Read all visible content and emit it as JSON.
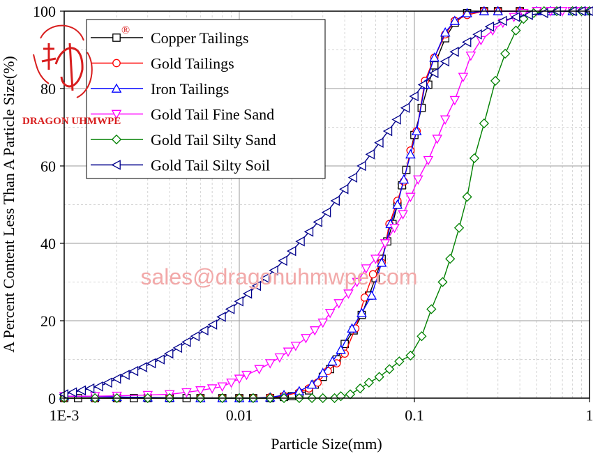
{
  "chart_data": {
    "type": "line",
    "xscale": "log",
    "xlim": [
      0.001,
      1
    ],
    "ylim": [
      0,
      100
    ],
    "xlabel": "Particle Size(mm)",
    "ylabel": "A Percent Content Less Than A Particle Size(%)",
    "xticks": [
      {
        "value": 0.001,
        "label": "1E-3"
      },
      {
        "value": 0.01,
        "label": "0.01"
      },
      {
        "value": 0.1,
        "label": "0.1"
      },
      {
        "value": 1,
        "label": "1"
      }
    ],
    "yticks": [
      {
        "value": 0,
        "label": "0"
      },
      {
        "value": 20,
        "label": "20"
      },
      {
        "value": 40,
        "label": "40"
      },
      {
        "value": 60,
        "label": "60"
      },
      {
        "value": 80,
        "label": "80"
      },
      {
        "value": 100,
        "label": "100"
      }
    ],
    "grid": true,
    "legend_position": "top-left",
    "series": [
      {
        "name": "Copper Tailings",
        "color": "#000000",
        "marker": "square",
        "x": [
          0.001,
          0.0012,
          0.0015,
          0.002,
          0.0025,
          0.003,
          0.004,
          0.005,
          0.006,
          0.008,
          0.01,
          0.012,
          0.015,
          0.018,
          0.02,
          0.022,
          0.025,
          0.027,
          0.03,
          0.033,
          0.036,
          0.04,
          0.045,
          0.05,
          0.055,
          0.06,
          0.065,
          0.07,
          0.075,
          0.08,
          0.085,
          0.09,
          0.1,
          0.11,
          0.12,
          0.13,
          0.15,
          0.17,
          0.2,
          0.25,
          0.3,
          0.4,
          0.5,
          0.6,
          0.8,
          1.0
        ],
        "y": [
          0,
          0,
          0,
          0,
          0,
          0,
          0,
          0,
          0,
          0,
          0,
          0,
          0,
          0.3,
          0.5,
          1,
          2,
          3.5,
          5.5,
          7.5,
          10,
          14,
          17.5,
          21.5,
          26.5,
          31,
          36,
          40.5,
          45,
          50,
          55,
          59,
          68,
          75,
          81,
          86,
          93,
          97,
          99.5,
          100,
          100,
          100,
          100,
          100,
          100,
          100
        ]
      },
      {
        "name": "Gold Tailings",
        "color": "#ff0000",
        "marker": "circle",
        "x": [
          0.001,
          0.0015,
          0.002,
          0.003,
          0.004,
          0.006,
          0.008,
          0.01,
          0.012,
          0.015,
          0.018,
          0.022,
          0.025,
          0.028,
          0.032,
          0.036,
          0.04,
          0.046,
          0.052,
          0.058,
          0.065,
          0.072,
          0.08,
          0.087,
          0.095,
          0.103,
          0.115,
          0.13,
          0.15,
          0.17,
          0.2,
          0.25,
          0.3,
          0.4,
          0.5,
          0.6,
          0.8,
          1.0
        ],
        "y": [
          0,
          0,
          0,
          0,
          0,
          0,
          0,
          0,
          0,
          0.2,
          0.6,
          1.5,
          2.5,
          4,
          7,
          9,
          11.5,
          18,
          26,
          32,
          35,
          45,
          51,
          56,
          64,
          69,
          82,
          88,
          94,
          97.5,
          99,
          100,
          100,
          100,
          100,
          100,
          100,
          100
        ]
      },
      {
        "name": "Iron Tailings",
        "color": "#0000ff",
        "marker": "triangle-up",
        "x": [
          0.001,
          0.0015,
          0.002,
          0.003,
          0.004,
          0.006,
          0.008,
          0.01,
          0.012,
          0.015,
          0.018,
          0.022,
          0.026,
          0.03,
          0.034,
          0.038,
          0.044,
          0.05,
          0.057,
          0.065,
          0.073,
          0.08,
          0.087,
          0.095,
          0.103,
          0.115,
          0.13,
          0.15,
          0.17,
          0.2,
          0.25,
          0.3,
          0.4,
          0.5,
          0.6,
          0.8,
          1.0
        ],
        "y": [
          0.5,
          0.4,
          0.3,
          0.2,
          0.1,
          0,
          0,
          0,
          0,
          0.2,
          0.8,
          1.8,
          3.5,
          6.5,
          9.5,
          12.5,
          18,
          22,
          26.5,
          35,
          45,
          50,
          56.5,
          63,
          69,
          81,
          88,
          94.5,
          97.5,
          99.5,
          100,
          100,
          100,
          100,
          100,
          100,
          100
        ]
      },
      {
        "name": "Gold Tail Fine Sand",
        "color": "#ff00ff",
        "marker": "triangle-down",
        "x": [
          0.001,
          0.0015,
          0.002,
          0.003,
          0.004,
          0.005,
          0.006,
          0.007,
          0.008,
          0.009,
          0.01,
          0.011,
          0.013,
          0.015,
          0.017,
          0.019,
          0.021,
          0.024,
          0.027,
          0.03,
          0.033,
          0.037,
          0.042,
          0.047,
          0.053,
          0.06,
          0.068,
          0.077,
          0.086,
          0.095,
          0.105,
          0.12,
          0.135,
          0.15,
          0.17,
          0.19,
          0.21,
          0.24,
          0.28,
          0.32,
          0.37,
          0.42,
          0.5,
          0.6,
          0.7,
          0.8,
          0.9,
          1.0
        ],
        "y": [
          0.5,
          0.5,
          0.6,
          0.8,
          1.0,
          1.5,
          2.0,
          2.5,
          3.0,
          4.0,
          5.0,
          6.0,
          7.5,
          9.0,
          10.5,
          12.0,
          13.5,
          15.5,
          17.5,
          19.5,
          22.0,
          24.5,
          27.0,
          30.0,
          33.5,
          36.0,
          40.0,
          44.0,
          47.5,
          52.0,
          56.5,
          61.5,
          67.0,
          72.0,
          77.0,
          83.0,
          88.5,
          92.5,
          95.0,
          97.0,
          98.5,
          99.5,
          100,
          100,
          100,
          100,
          100,
          100
        ]
      },
      {
        "name": "Gold Tail Silty Sand",
        "color": "#008000",
        "marker": "diamond",
        "x": [
          0.001,
          0.0015,
          0.002,
          0.003,
          0.004,
          0.006,
          0.008,
          0.01,
          0.012,
          0.015,
          0.018,
          0.022,
          0.026,
          0.03,
          0.035,
          0.038,
          0.043,
          0.049,
          0.055,
          0.063,
          0.072,
          0.082,
          0.095,
          0.11,
          0.125,
          0.145,
          0.16,
          0.18,
          0.2,
          0.22,
          0.25,
          0.29,
          0.33,
          0.38,
          0.42,
          0.48,
          0.55,
          0.65,
          0.8,
          0.9,
          1.0
        ],
        "y": [
          0,
          0,
          0,
          0,
          0,
          0,
          0,
          0,
          0,
          0,
          0,
          0,
          0,
          0,
          0,
          0.5,
          1,
          2.5,
          4,
          5.5,
          7.5,
          9.5,
          11,
          16,
          23,
          30,
          36,
          44,
          52,
          62,
          71,
          82,
          89,
          95,
          98,
          99.5,
          100,
          100,
          100,
          100,
          100
        ]
      },
      {
        "name": "Gold Tail Silty Soil",
        "color": "#00008b",
        "marker": "triangle-left",
        "x": [
          0.001,
          0.00112,
          0.00126,
          0.00141,
          0.00158,
          0.00178,
          0.002,
          0.00224,
          0.00251,
          0.00282,
          0.00316,
          0.00355,
          0.00398,
          0.00447,
          0.00501,
          0.00562,
          0.00631,
          0.00708,
          0.00794,
          0.00891,
          0.01,
          0.0112,
          0.0126,
          0.0141,
          0.0158,
          0.0178,
          0.02,
          0.0224,
          0.0251,
          0.0282,
          0.0316,
          0.0355,
          0.0398,
          0.0447,
          0.0501,
          0.0562,
          0.0631,
          0.0708,
          0.0794,
          0.0891,
          0.1,
          0.112,
          0.13,
          0.15,
          0.17,
          0.2,
          0.23,
          0.27,
          0.32,
          0.38,
          0.45,
          0.55,
          0.65,
          0.8,
          0.9,
          1.0
        ],
        "y": [
          1.0,
          1.5,
          2.0,
          2.5,
          3.0,
          4.0,
          5.0,
          6.0,
          7.0,
          8.0,
          9.0,
          10.0,
          11.5,
          13.0,
          14.5,
          16.0,
          17.5,
          19.0,
          21.0,
          23.0,
          25.0,
          27.0,
          29.0,
          31.0,
          33.0,
          35.5,
          38.0,
          40.5,
          43.0,
          45.5,
          48.0,
          51.0,
          54.0,
          57.0,
          60.0,
          63.0,
          66.0,
          69.0,
          72.0,
          75.0,
          78.0,
          81.0,
          84.0,
          87.0,
          89.5,
          92.0,
          94.0,
          96.0,
          97.5,
          98.5,
          99.0,
          99.5,
          100,
          100,
          100,
          100
        ]
      }
    ]
  },
  "watermark": {
    "email": "sales@dragonuhmwpe.com",
    "logo_text": "DRAGON UHMWPE",
    "logo_registered": "®",
    "logo_color": "#d81e1e"
  }
}
